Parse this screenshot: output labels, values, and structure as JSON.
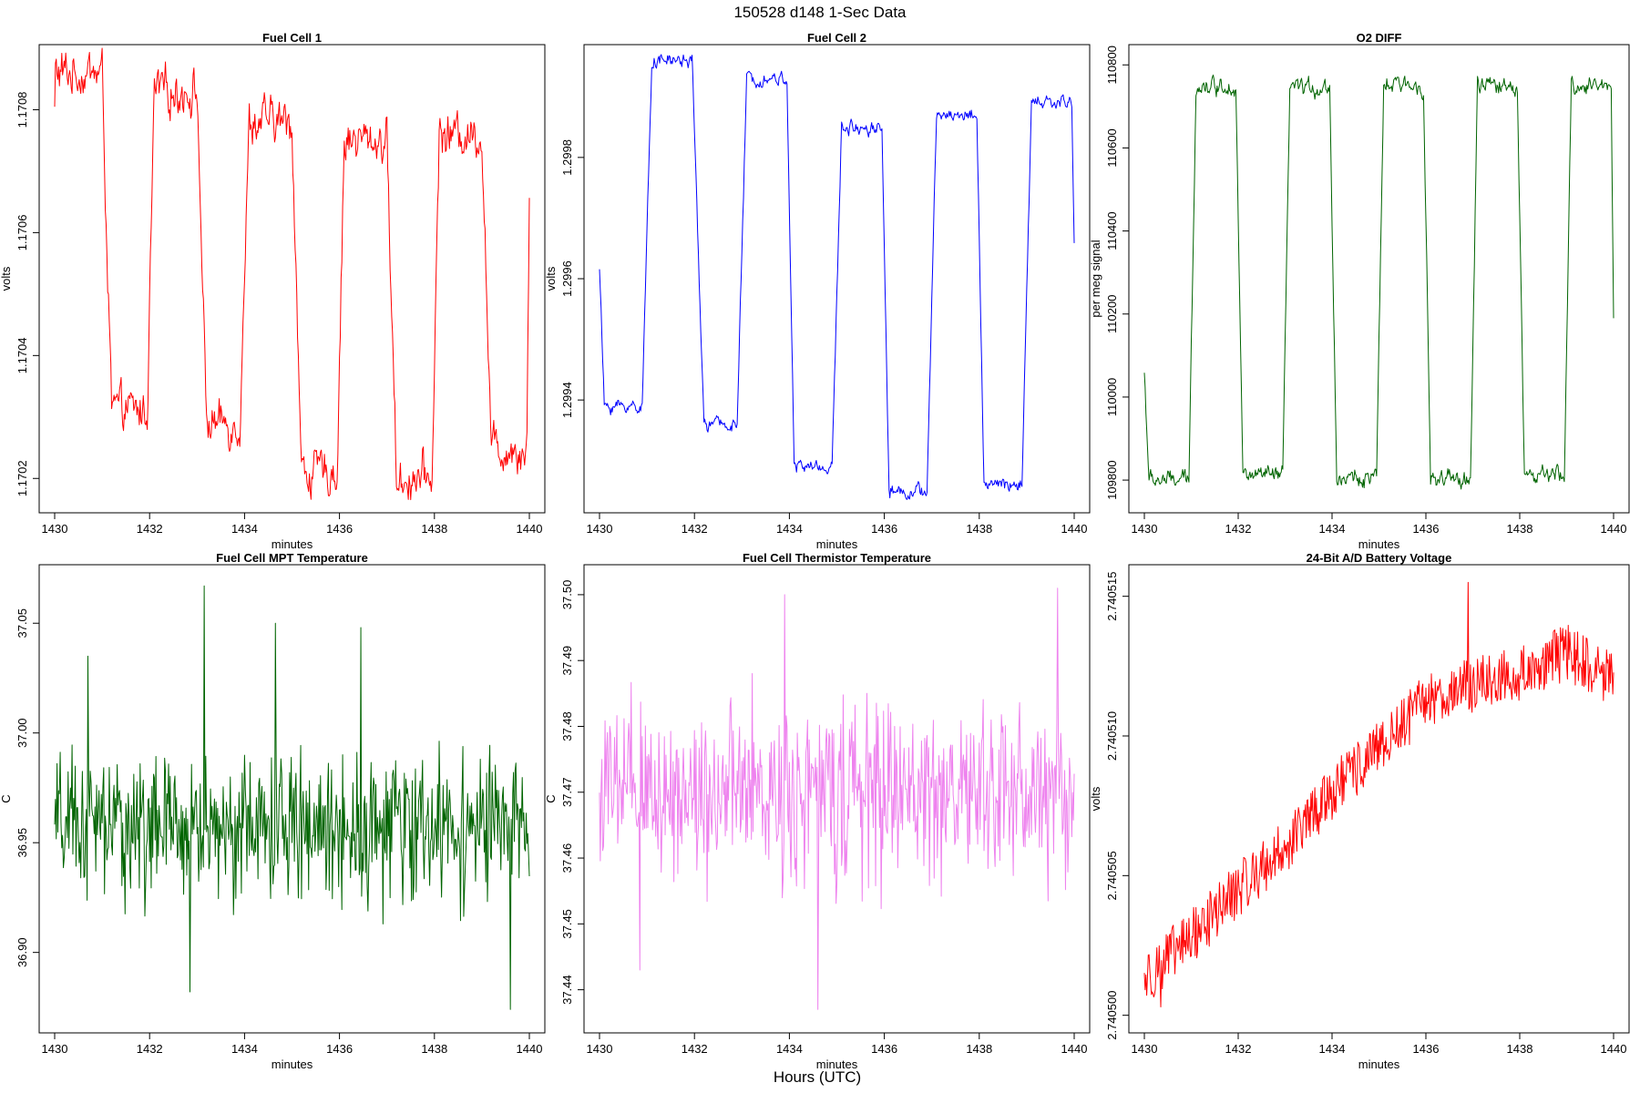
{
  "figure": {
    "title": "150528   d148   1-Sec Data",
    "xlabel": "Hours (UTC)"
  },
  "chart_data": [
    {
      "type": "line",
      "title": "Fuel Cell 1",
      "xlabel": "minutes",
      "ylabel": "volts",
      "color": "#ff0000",
      "xlim": [
        1430,
        1440
      ],
      "ylim": [
        1.17015,
        1.1709
      ],
      "xticks": [
        1430,
        1432,
        1434,
        1436,
        1438,
        1440
      ],
      "xtick_labels": [
        "1430",
        "1432",
        "1434",
        "1436",
        "1438",
        "1440"
      ],
      "yticks": [
        1.1702,
        1.1704,
        1.1706,
        1.1708
      ],
      "ytick_labels": [
        "1.1702",
        "1.1704",
        "1.1706",
        "1.1708"
      ],
      "levels": [
        {
          "x": [
            1430.0,
            1431.0
          ],
          "y": 1.17086
        },
        {
          "x": [
            1431.2,
            1431.95
          ],
          "y": 1.17031
        },
        {
          "x": [
            1432.1,
            1433.0
          ],
          "y": 1.17083
        },
        {
          "x": [
            1433.2,
            1433.9
          ],
          "y": 1.17029
        },
        {
          "x": [
            1434.1,
            1435.0
          ],
          "y": 1.17078
        },
        {
          "x": [
            1435.2,
            1435.95
          ],
          "y": 1.17021
        },
        {
          "x": [
            1436.1,
            1437.0
          ],
          "y": 1.17075
        },
        {
          "x": [
            1437.2,
            1437.95
          ],
          "y": 1.1702
        },
        {
          "x": [
            1438.1,
            1439.0
          ],
          "y": 1.17076
        },
        {
          "x": [
            1439.2,
            1439.95
          ],
          "y": 1.17025
        }
      ],
      "start_value": 1.1708,
      "end_value": 1.17067,
      "noise": 2.5e-05
    },
    {
      "type": "line",
      "title": "Fuel Cell 2",
      "xlabel": "minutes",
      "ylabel": "volts",
      "color": "#0000ff",
      "xlim": [
        1430,
        1440
      ],
      "ylim": [
        1.29922,
        1.29998
      ],
      "xticks": [
        1430,
        1432,
        1434,
        1436,
        1438,
        1440
      ],
      "xtick_labels": [
        "1430",
        "1432",
        "1434",
        "1436",
        "1438",
        "1440"
      ],
      "yticks": [
        1.2994,
        1.2996,
        1.2998
      ],
      "ytick_labels": [
        "1.2994",
        "1.2996",
        "1.2998"
      ],
      "levels": [
        {
          "x": [
            1430.1,
            1430.9
          ],
          "y": 1.29939
        },
        {
          "x": [
            1431.1,
            1431.95
          ],
          "y": 1.29996
        },
        {
          "x": [
            1432.2,
            1432.9
          ],
          "y": 1.29936
        },
        {
          "x": [
            1433.1,
            1433.95
          ],
          "y": 1.29993
        },
        {
          "x": [
            1434.1,
            1434.9
          ],
          "y": 1.29929
        },
        {
          "x": [
            1435.1,
            1435.95
          ],
          "y": 1.29985
        },
        {
          "x": [
            1436.1,
            1436.9
          ],
          "y": 1.29925
        },
        {
          "x": [
            1437.1,
            1437.95
          ],
          "y": 1.29987
        },
        {
          "x": [
            1438.1,
            1438.9
          ],
          "y": 1.29926
        },
        {
          "x": [
            1439.1,
            1439.95
          ],
          "y": 1.29989
        }
      ],
      "start_value": 1.29962,
      "end_value": 1.29966,
      "noise": 8e-06
    },
    {
      "type": "line",
      "title": "O2 DIFF",
      "xlabel": "minutes",
      "ylabel": "per meg signal",
      "color": "#006400",
      "xlim": [
        1430,
        1440
      ],
      "ylim": [
        109730,
        110840
      ],
      "xticks": [
        1430,
        1432,
        1434,
        1436,
        1438,
        1440
      ],
      "xtick_labels": [
        "1430",
        "1432",
        "1434",
        "1436",
        "1438",
        "1440"
      ],
      "yticks": [
        109800,
        110000,
        110200,
        110400,
        110600,
        110800
      ],
      "ytick_labels": [
        "109800",
        "110000",
        "110200",
        "110400",
        "110600",
        "110800"
      ],
      "levels": [
        {
          "x": [
            1430.1,
            1430.95
          ],
          "y": 109800
        },
        {
          "x": [
            1431.1,
            1431.95
          ],
          "y": 110750
        },
        {
          "x": [
            1432.1,
            1432.95
          ],
          "y": 109810
        },
        {
          "x": [
            1433.1,
            1433.95
          ],
          "y": 110745
        },
        {
          "x": [
            1434.1,
            1434.95
          ],
          "y": 109805
        },
        {
          "x": [
            1435.1,
            1435.95
          ],
          "y": 110750
        },
        {
          "x": [
            1436.1,
            1436.95
          ],
          "y": 109800
        },
        {
          "x": [
            1437.1,
            1437.95
          ],
          "y": 110750
        },
        {
          "x": [
            1438.1,
            1438.95
          ],
          "y": 109810
        },
        {
          "x": [
            1439.1,
            1439.95
          ],
          "y": 110750
        }
      ],
      "start_value": 110060,
      "end_value": 110200,
      "noise": 15
    },
    {
      "type": "line",
      "title": "Fuel Cell MPT Temperature",
      "xlabel": "minutes",
      "ylabel": "C",
      "color": "#006400",
      "xlim": [
        1430,
        1440
      ],
      "ylim": [
        36.865,
        37.075
      ],
      "xticks": [
        1430,
        1432,
        1434,
        1436,
        1438,
        1440
      ],
      "xtick_labels": [
        "1430",
        "1432",
        "1434",
        "1436",
        "1438",
        "1440"
      ],
      "yticks": [
        36.9,
        36.95,
        37.0,
        37.05
      ],
      "ytick_labels": [
        "36.90",
        "36.95",
        "37.00",
        "37.05"
      ],
      "mean": 36.957,
      "noise": 0.022,
      "spikes": [
        {
          "x": 1433.15,
          "y": 37.067
        },
        {
          "x": 1432.85,
          "y": 36.882
        },
        {
          "x": 1434.65,
          "y": 37.05
        },
        {
          "x": 1439.6,
          "y": 36.874
        },
        {
          "x": 1436.45,
          "y": 37.048
        },
        {
          "x": 1430.7,
          "y": 37.035
        }
      ]
    },
    {
      "type": "line",
      "title": "Fuel Cell Thermistor Temperature",
      "xlabel": "minutes",
      "ylabel": "C",
      "color": "#ee82ee",
      "xlim": [
        1430,
        1440
      ],
      "ylim": [
        37.434,
        37.504
      ],
      "xticks": [
        1430,
        1432,
        1434,
        1436,
        1438,
        1440
      ],
      "xtick_labels": [
        "1430",
        "1432",
        "1434",
        "1436",
        "1438",
        "1440"
      ],
      "yticks": [
        37.44,
        37.45,
        37.46,
        37.47,
        37.48,
        37.49,
        37.5
      ],
      "ytick_labels": [
        "37.44",
        "37.45",
        "37.46",
        "37.47",
        "37.48",
        "37.49",
        "37.50"
      ],
      "mean": 37.47,
      "noise": 0.009,
      "spikes": [
        {
          "x": 1434.6,
          "y": 37.437
        },
        {
          "x": 1439.65,
          "y": 37.501
        },
        {
          "x": 1433.9,
          "y": 37.5
        },
        {
          "x": 1430.85,
          "y": 37.443
        }
      ]
    },
    {
      "type": "line",
      "title": "24-Bit A/D Battery Voltage",
      "xlabel": "minutes",
      "ylabel": "volts",
      "color": "#ff0000",
      "xlim": [
        1430,
        1440
      ],
      "ylim": [
        2.7404995,
        2.740516
      ],
      "xticks": [
        1430,
        1432,
        1434,
        1436,
        1438,
        1440
      ],
      "xtick_labels": [
        "1430",
        "1432",
        "1434",
        "1436",
        "1438",
        "1440"
      ],
      "yticks": [
        2.7405,
        2.740505,
        2.74051,
        2.740515
      ],
      "ytick_labels": [
        "2.740500",
        "2.740505",
        "2.740510",
        "2.740515"
      ],
      "trend": [
        {
          "x": 1430.0,
          "y": 2.7405013
        },
        {
          "x": 1431.0,
          "y": 2.7405028
        },
        {
          "x": 1432.0,
          "y": 2.7405045
        },
        {
          "x": 1433.0,
          "y": 2.740506
        },
        {
          "x": 1434.0,
          "y": 2.740508
        },
        {
          "x": 1435.0,
          "y": 2.7405095
        },
        {
          "x": 1436.0,
          "y": 2.7405113
        },
        {
          "x": 1437.0,
          "y": 2.7405118
        },
        {
          "x": 1438.0,
          "y": 2.7405122
        },
        {
          "x": 1439.0,
          "y": 2.740513
        },
        {
          "x": 1440.0,
          "y": 2.740512
        }
      ],
      "noise": 1e-06,
      "spikes": [
        {
          "x": 1436.9,
          "y": 2.7405155
        },
        {
          "x": 1430.35,
          "y": 2.7405003
        }
      ]
    }
  ]
}
